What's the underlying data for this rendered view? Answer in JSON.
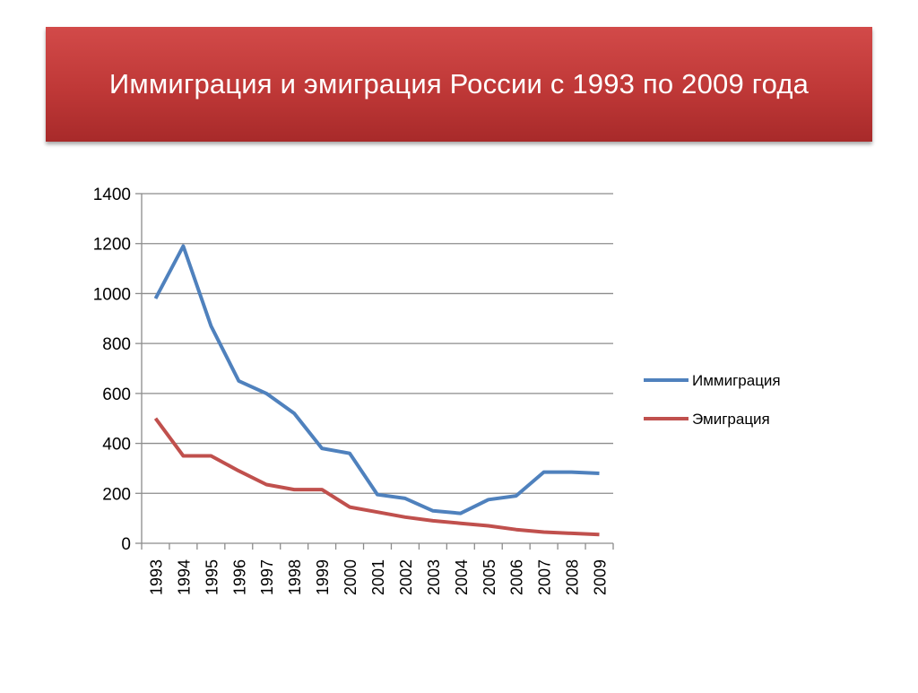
{
  "slide": {
    "title": "Иммиграция и эмиграция России с 1993 по 2009 года"
  },
  "colors": {
    "banner": "#c23b3b",
    "immigration": "#4f81bd",
    "emigration": "#c0504d",
    "grid": "#8c8c8c"
  },
  "chart_data": {
    "type": "line",
    "title": "",
    "xlabel": "",
    "ylabel": "",
    "ylim": [
      0,
      1400
    ],
    "yticks": [
      0,
      200,
      400,
      600,
      800,
      1000,
      1200,
      1400
    ],
    "grid": "horizontal",
    "legend_position": "right",
    "categories": [
      "1993",
      "1994",
      "1995",
      "1996",
      "1997",
      "1998",
      "1999",
      "2000",
      "2001",
      "2002",
      "2003",
      "2004",
      "2005",
      "2006",
      "2007",
      "2008",
      "2009"
    ],
    "series": [
      {
        "name": "Иммиграция",
        "color": "#4f81bd",
        "values": [
          980,
          1190,
          870,
          650,
          600,
          520,
          380,
          360,
          195,
          180,
          130,
          120,
          175,
          190,
          285,
          285,
          280
        ]
      },
      {
        "name": "Эмиграция",
        "color": "#c0504d",
        "values": [
          500,
          350,
          350,
          290,
          235,
          215,
          215,
          145,
          125,
          105,
          90,
          80,
          70,
          55,
          45,
          40,
          35
        ]
      }
    ]
  }
}
